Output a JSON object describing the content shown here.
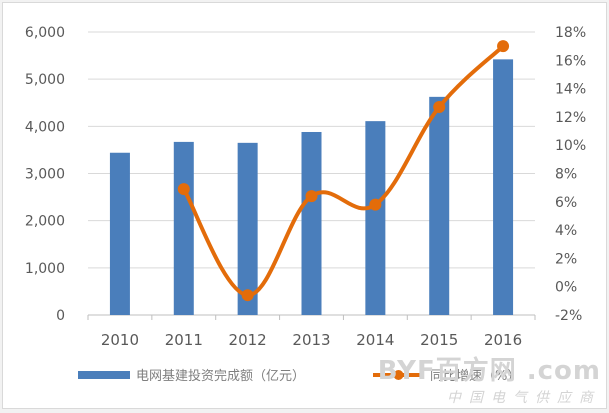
{
  "chart_data": {
    "type": "bar+line",
    "title": "",
    "categories": [
      "2010",
      "2011",
      "2012",
      "2013",
      "2014",
      "2015",
      "2016"
    ],
    "series": [
      {
        "name": "电网基建投资完成额（亿元）",
        "type": "bar",
        "axis": "left",
        "color": "#4a7ebb",
        "values": [
          3440,
          3670,
          3650,
          3880,
          4110,
          4625,
          5420
        ]
      },
      {
        "name": "同比增速（%）",
        "type": "line",
        "axis": "right",
        "color": "#e36c0a",
        "values": [
          null,
          6.9,
          -0.6,
          6.4,
          5.8,
          12.7,
          17.0
        ]
      }
    ],
    "left_axis": {
      "ticks": [
        "0",
        "1,000",
        "2,000",
        "3,000",
        "4,000",
        "5,000",
        "6,000"
      ],
      "ylim": [
        0,
        6000
      ]
    },
    "right_axis": {
      "ticks": [
        "-2%",
        "0%",
        "2%",
        "4%",
        "6%",
        "8%",
        "10%",
        "12%",
        "14%",
        "16%",
        "18%"
      ],
      "ylim": [
        -2,
        18
      ]
    },
    "grid": true,
    "legend_position": "bottom"
  },
  "legend": {
    "bar_label": "电网基建投资完成额（亿元）",
    "line_label": "同比增速（%）"
  },
  "watermark": {
    "logo": "BYF百方网 .com",
    "sub": "中国电气供应商"
  }
}
